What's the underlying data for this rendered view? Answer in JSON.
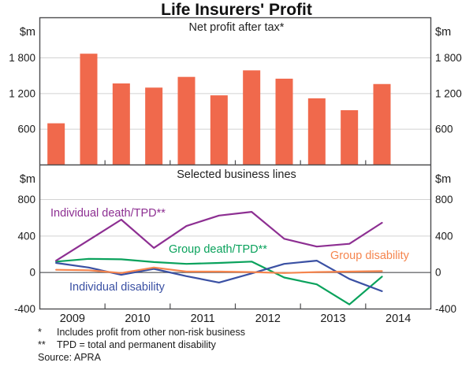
{
  "title": "Life Insurers' Profit",
  "unit_label": "$m",
  "x_years": [
    "2009",
    "2010",
    "2011",
    "2012",
    "2013",
    "2014"
  ],
  "footnotes": [
    {
      "marker": "*",
      "text": "Includes profit from other non-risk business"
    },
    {
      "marker": "**",
      "text": "TPD = total and permanent disability"
    }
  ],
  "source": "Source: APRA",
  "colors": {
    "bar": "#f0694c",
    "individual_death_tpd": "#8d2f92",
    "group_death_tpd": "#0aa25c",
    "group_disability": "#f5854e",
    "individual_disability": "#3a50a3",
    "grid": "#d2d2d2",
    "frame": "#4d4d4f",
    "zero_line": "#6d6e71",
    "text": "#1a1a1a"
  },
  "chart_data": [
    {
      "type": "bar",
      "panel": "top",
      "title": "Net profit after tax*",
      "ylabel": "$m",
      "x": [
        "2009 H1",
        "2009 H2",
        "2010 H1",
        "2010 H2",
        "2011 H1",
        "2011 H2",
        "2012 H1",
        "2012 H2",
        "2013 H1",
        "2013 H2",
        "2014 H1"
      ],
      "values": [
        700,
        1870,
        1370,
        1300,
        1480,
        1170,
        1590,
        1450,
        1120,
        920,
        1360
      ],
      "ylim": [
        0,
        2475
      ],
      "yticks": [
        600,
        1200,
        1800
      ],
      "ytick_labels": [
        "600",
        "1 200",
        "1 800"
      ],
      "grid": true,
      "legend_position": "none"
    },
    {
      "type": "line",
      "panel": "bottom",
      "title": "Selected business lines",
      "ylabel": "$m",
      "x": [
        "2009 H1",
        "2009 H2",
        "2010 H1",
        "2010 H2",
        "2011 H1",
        "2011 H2",
        "2012 H1",
        "2012 H2",
        "2013 H1",
        "2013 H2",
        "2014 H1"
      ],
      "series": [
        {
          "name": "Individual death/TPD**",
          "color_key": "individual_death_tpd",
          "values": [
            130,
            355,
            580,
            270,
            510,
            625,
            665,
            370,
            285,
            315,
            545
          ]
        },
        {
          "name": "Group death/TPD**",
          "color_key": "group_death_tpd",
          "values": [
            120,
            150,
            145,
            115,
            95,
            105,
            120,
            -55,
            -130,
            -350,
            -45
          ]
        },
        {
          "name": "Group disability",
          "color_key": "group_disability",
          "values": [
            30,
            25,
            -5,
            55,
            10,
            10,
            5,
            -5,
            5,
            10,
            15
          ]
        },
        {
          "name": "Individual disability",
          "color_key": "individual_disability",
          "values": [
            105,
            55,
            -25,
            40,
            -40,
            -110,
            -10,
            95,
            130,
            -70,
            -205
          ]
        }
      ],
      "ylim": [
        -400,
        1180
      ],
      "yticks": [
        -400,
        0,
        400,
        800
      ],
      "ytick_labels": [
        "-400",
        "0",
        "400",
        "800"
      ],
      "grid": true,
      "legend_position": "inline-labels"
    }
  ],
  "series_labels": {
    "purple": "Individual death/TPD**",
    "green": "Group death/TPD**",
    "orange": "Group disability",
    "blue": "Individual disability"
  }
}
